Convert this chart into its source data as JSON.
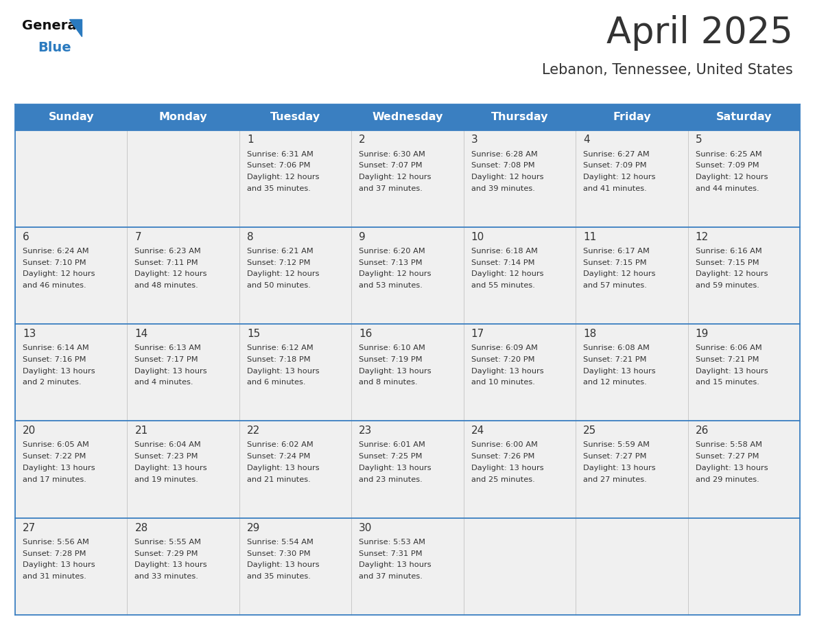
{
  "title": "April 2025",
  "subtitle": "Lebanon, Tennessee, United States",
  "days_of_week": [
    "Sunday",
    "Monday",
    "Tuesday",
    "Wednesday",
    "Thursday",
    "Friday",
    "Saturday"
  ],
  "header_bg": "#3a7fc1",
  "header_text": "#ffffff",
  "row_bg_light": "#f0f0f0",
  "row_bg_white": "#ffffff",
  "border_color": "#3a7fc1",
  "divider_color": "#c8c8c8",
  "text_color": "#333333",
  "logo_general_color": "#111111",
  "logo_blue_color": "#2a7abf",
  "title_fontsize": 38,
  "subtitle_fontsize": 15,
  "header_fontsize": 11.5,
  "date_fontsize": 11,
  "info_fontsize": 8.2,
  "weeks": [
    {
      "days": [
        {
          "date": "",
          "sunrise": "",
          "sunset": "",
          "daylight": ""
        },
        {
          "date": "",
          "sunrise": "",
          "sunset": "",
          "daylight": ""
        },
        {
          "date": "1",
          "sunrise": "6:31 AM",
          "sunset": "7:06 PM",
          "daylight_line1": "Daylight: 12 hours",
          "daylight_line2": "and 35 minutes."
        },
        {
          "date": "2",
          "sunrise": "6:30 AM",
          "sunset": "7:07 PM",
          "daylight_line1": "Daylight: 12 hours",
          "daylight_line2": "and 37 minutes."
        },
        {
          "date": "3",
          "sunrise": "6:28 AM",
          "sunset": "7:08 PM",
          "daylight_line1": "Daylight: 12 hours",
          "daylight_line2": "and 39 minutes."
        },
        {
          "date": "4",
          "sunrise": "6:27 AM",
          "sunset": "7:09 PM",
          "daylight_line1": "Daylight: 12 hours",
          "daylight_line2": "and 41 minutes."
        },
        {
          "date": "5",
          "sunrise": "6:25 AM",
          "sunset": "7:09 PM",
          "daylight_line1": "Daylight: 12 hours",
          "daylight_line2": "and 44 minutes."
        }
      ]
    },
    {
      "days": [
        {
          "date": "6",
          "sunrise": "6:24 AM",
          "sunset": "7:10 PM",
          "daylight_line1": "Daylight: 12 hours",
          "daylight_line2": "and 46 minutes."
        },
        {
          "date": "7",
          "sunrise": "6:23 AM",
          "sunset": "7:11 PM",
          "daylight_line1": "Daylight: 12 hours",
          "daylight_line2": "and 48 minutes."
        },
        {
          "date": "8",
          "sunrise": "6:21 AM",
          "sunset": "7:12 PM",
          "daylight_line1": "Daylight: 12 hours",
          "daylight_line2": "and 50 minutes."
        },
        {
          "date": "9",
          "sunrise": "6:20 AM",
          "sunset": "7:13 PM",
          "daylight_line1": "Daylight: 12 hours",
          "daylight_line2": "and 53 minutes."
        },
        {
          "date": "10",
          "sunrise": "6:18 AM",
          "sunset": "7:14 PM",
          "daylight_line1": "Daylight: 12 hours",
          "daylight_line2": "and 55 minutes."
        },
        {
          "date": "11",
          "sunrise": "6:17 AM",
          "sunset": "7:15 PM",
          "daylight_line1": "Daylight: 12 hours",
          "daylight_line2": "and 57 minutes."
        },
        {
          "date": "12",
          "sunrise": "6:16 AM",
          "sunset": "7:15 PM",
          "daylight_line1": "Daylight: 12 hours",
          "daylight_line2": "and 59 minutes."
        }
      ]
    },
    {
      "days": [
        {
          "date": "13",
          "sunrise": "6:14 AM",
          "sunset": "7:16 PM",
          "daylight_line1": "Daylight: 13 hours",
          "daylight_line2": "and 2 minutes."
        },
        {
          "date": "14",
          "sunrise": "6:13 AM",
          "sunset": "7:17 PM",
          "daylight_line1": "Daylight: 13 hours",
          "daylight_line2": "and 4 minutes."
        },
        {
          "date": "15",
          "sunrise": "6:12 AM",
          "sunset": "7:18 PM",
          "daylight_line1": "Daylight: 13 hours",
          "daylight_line2": "and 6 minutes."
        },
        {
          "date": "16",
          "sunrise": "6:10 AM",
          "sunset": "7:19 PM",
          "daylight_line1": "Daylight: 13 hours",
          "daylight_line2": "and 8 minutes."
        },
        {
          "date": "17",
          "sunrise": "6:09 AM",
          "sunset": "7:20 PM",
          "daylight_line1": "Daylight: 13 hours",
          "daylight_line2": "and 10 minutes."
        },
        {
          "date": "18",
          "sunrise": "6:08 AM",
          "sunset": "7:21 PM",
          "daylight_line1": "Daylight: 13 hours",
          "daylight_line2": "and 12 minutes."
        },
        {
          "date": "19",
          "sunrise": "6:06 AM",
          "sunset": "7:21 PM",
          "daylight_line1": "Daylight: 13 hours",
          "daylight_line2": "and 15 minutes."
        }
      ]
    },
    {
      "days": [
        {
          "date": "20",
          "sunrise": "6:05 AM",
          "sunset": "7:22 PM",
          "daylight_line1": "Daylight: 13 hours",
          "daylight_line2": "and 17 minutes."
        },
        {
          "date": "21",
          "sunrise": "6:04 AM",
          "sunset": "7:23 PM",
          "daylight_line1": "Daylight: 13 hours",
          "daylight_line2": "and 19 minutes."
        },
        {
          "date": "22",
          "sunrise": "6:02 AM",
          "sunset": "7:24 PM",
          "daylight_line1": "Daylight: 13 hours",
          "daylight_line2": "and 21 minutes."
        },
        {
          "date": "23",
          "sunrise": "6:01 AM",
          "sunset": "7:25 PM",
          "daylight_line1": "Daylight: 13 hours",
          "daylight_line2": "and 23 minutes."
        },
        {
          "date": "24",
          "sunrise": "6:00 AM",
          "sunset": "7:26 PM",
          "daylight_line1": "Daylight: 13 hours",
          "daylight_line2": "and 25 minutes."
        },
        {
          "date": "25",
          "sunrise": "5:59 AM",
          "sunset": "7:27 PM",
          "daylight_line1": "Daylight: 13 hours",
          "daylight_line2": "and 27 minutes."
        },
        {
          "date": "26",
          "sunrise": "5:58 AM",
          "sunset": "7:27 PM",
          "daylight_line1": "Daylight: 13 hours",
          "daylight_line2": "and 29 minutes."
        }
      ]
    },
    {
      "days": [
        {
          "date": "27",
          "sunrise": "5:56 AM",
          "sunset": "7:28 PM",
          "daylight_line1": "Daylight: 13 hours",
          "daylight_line2": "and 31 minutes."
        },
        {
          "date": "28",
          "sunrise": "5:55 AM",
          "sunset": "7:29 PM",
          "daylight_line1": "Daylight: 13 hours",
          "daylight_line2": "and 33 minutes."
        },
        {
          "date": "29",
          "sunrise": "5:54 AM",
          "sunset": "7:30 PM",
          "daylight_line1": "Daylight: 13 hours",
          "daylight_line2": "and 35 minutes."
        },
        {
          "date": "30",
          "sunrise": "5:53 AM",
          "sunset": "7:31 PM",
          "daylight_line1": "Daylight: 13 hours",
          "daylight_line2": "and 37 minutes."
        },
        {
          "date": "",
          "sunrise": "",
          "sunset": "",
          "daylight_line1": "",
          "daylight_line2": ""
        },
        {
          "date": "",
          "sunrise": "",
          "sunset": "",
          "daylight_line1": "",
          "daylight_line2": ""
        },
        {
          "date": "",
          "sunrise": "",
          "sunset": "",
          "daylight_line1": "",
          "daylight_line2": ""
        }
      ]
    }
  ]
}
